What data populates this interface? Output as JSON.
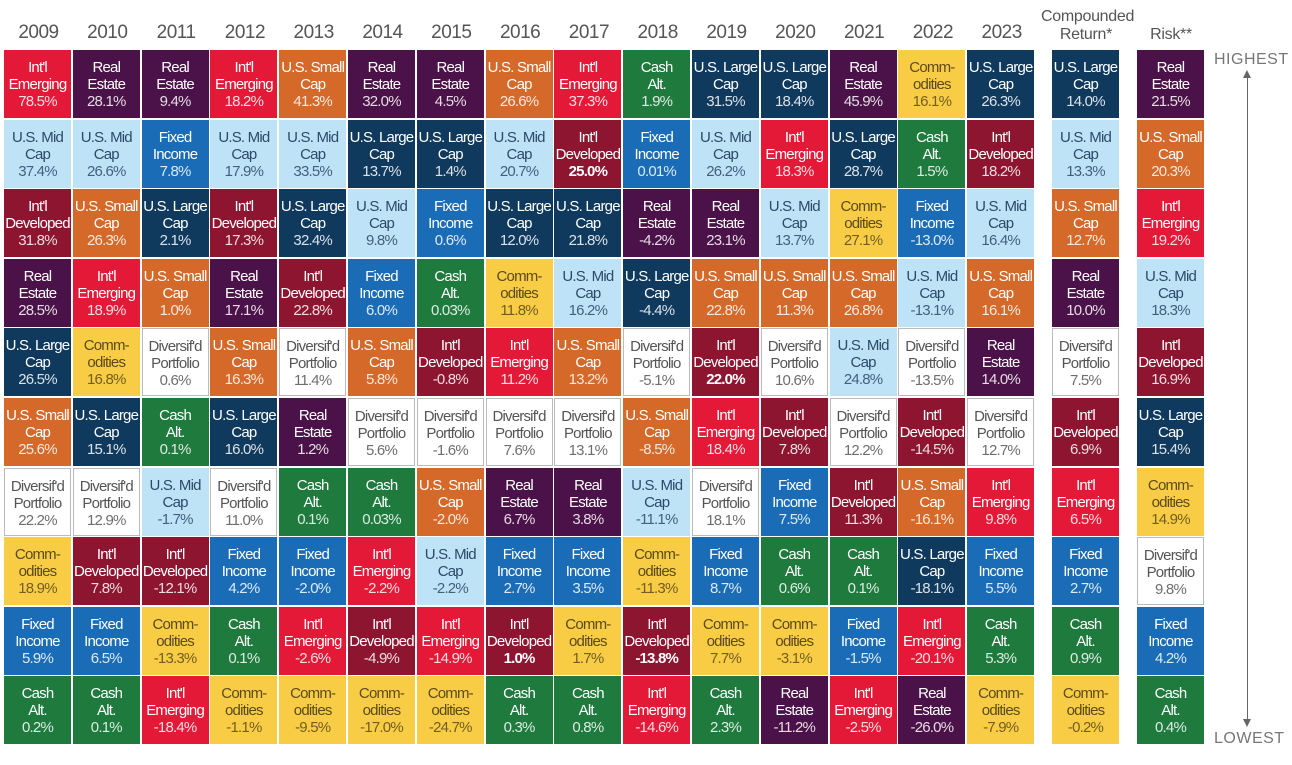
{
  "assets": {
    "em": {
      "line1": "Int'l",
      "line2": "Emerging",
      "color": "#e31937",
      "text": "#ffffff"
    },
    "re": {
      "line1": "Real",
      "line2": "Estate",
      "color": "#4a1248",
      "text": "#ffffff"
    },
    "mid": {
      "line1": "U.S. Mid",
      "line2": "Cap",
      "color": "#bfe3f6",
      "text": "#2a4a6a"
    },
    "fi": {
      "line1": "Fixed",
      "line2": "Income",
      "color": "#1b6cb7",
      "text": "#ffffff"
    },
    "dev": {
      "line1": "Int'l",
      "line2": "Developed",
      "color": "#8d1530",
      "text": "#ffffff"
    },
    "sm": {
      "line1": "U.S. Small",
      "line2": "Cap",
      "color": "#d4692a",
      "text": "#ffffff"
    },
    "lg": {
      "line1": "U.S. Large",
      "line2": "Cap",
      "color": "#0f3a5e",
      "text": "#ffffff"
    },
    "div": {
      "line1": "Diversif'd",
      "line2": "Portfolio",
      "color": "#ffffff",
      "text": "#555555"
    },
    "com": {
      "line1": "Comm-",
      "line2": "odities",
      "color": "#f8cd45",
      "text": "#5b4a1c"
    },
    "cash": {
      "line1": "Cash",
      "line2": "Alt.",
      "color": "#1f7a3d",
      "text": "#ffffff"
    }
  },
  "labels": {
    "highest": "HIGHEST",
    "lowest": "LOWEST"
  },
  "chart_data": {
    "type": "table",
    "columns": [
      {
        "header": "2009",
        "cells": [
          [
            "em",
            "78.5%"
          ],
          [
            "mid",
            "37.4%"
          ],
          [
            "dev",
            "31.8%"
          ],
          [
            "re",
            "28.5%"
          ],
          [
            "lg",
            "26.5%"
          ],
          [
            "sm",
            "25.6%"
          ],
          [
            "div",
            "22.2%"
          ],
          [
            "com",
            "18.9%"
          ],
          [
            "fi",
            "5.9%"
          ],
          [
            "cash",
            "0.2%"
          ]
        ]
      },
      {
        "header": "2010",
        "cells": [
          [
            "re",
            "28.1%"
          ],
          [
            "mid",
            "26.6%"
          ],
          [
            "sm",
            "26.3%"
          ],
          [
            "em",
            "18.9%"
          ],
          [
            "com",
            "16.8%"
          ],
          [
            "lg",
            "15.1%"
          ],
          [
            "div",
            "12.9%"
          ],
          [
            "dev",
            "7.8%"
          ],
          [
            "fi",
            "6.5%"
          ],
          [
            "cash",
            "0.1%"
          ]
        ]
      },
      {
        "header": "2011",
        "cells": [
          [
            "re",
            "9.4%"
          ],
          [
            "fi",
            "7.8%"
          ],
          [
            "lg",
            "2.1%"
          ],
          [
            "sm",
            "1.0%"
          ],
          [
            "div",
            "0.6%"
          ],
          [
            "cash",
            "0.1%"
          ],
          [
            "mid",
            "-1.7%"
          ],
          [
            "dev",
            "-12.1%"
          ],
          [
            "com",
            "-13.3%"
          ],
          [
            "em",
            "-18.4%"
          ]
        ]
      },
      {
        "header": "2012",
        "cells": [
          [
            "em",
            "18.2%"
          ],
          [
            "mid",
            "17.9%"
          ],
          [
            "dev",
            "17.3%"
          ],
          [
            "re",
            "17.1%"
          ],
          [
            "sm",
            "16.3%"
          ],
          [
            "lg",
            "16.0%"
          ],
          [
            "div",
            "11.0%"
          ],
          [
            "fi",
            "4.2%"
          ],
          [
            "cash",
            "0.1%"
          ],
          [
            "com",
            "-1.1%"
          ]
        ]
      },
      {
        "header": "2013",
        "cells": [
          [
            "sm",
            "41.3%"
          ],
          [
            "mid",
            "33.5%"
          ],
          [
            "lg",
            "32.4%"
          ],
          [
            "dev",
            "22.8%"
          ],
          [
            "div",
            "11.4%"
          ],
          [
            "re",
            "1.2%"
          ],
          [
            "cash",
            "0.1%"
          ],
          [
            "fi",
            "-2.0%"
          ],
          [
            "em",
            "-2.6%"
          ],
          [
            "com",
            "-9.5%"
          ]
        ]
      },
      {
        "header": "2014",
        "cells": [
          [
            "re",
            "32.0%"
          ],
          [
            "lg",
            "13.7%"
          ],
          [
            "mid",
            "9.8%"
          ],
          [
            "fi",
            "6.0%"
          ],
          [
            "sm",
            "5.8%"
          ],
          [
            "div",
            "5.6%"
          ],
          [
            "cash",
            "0.03%"
          ],
          [
            "em",
            "-2.2%"
          ],
          [
            "dev",
            "-4.9%"
          ],
          [
            "com",
            "-17.0%"
          ]
        ]
      },
      {
        "header": "2015",
        "cells": [
          [
            "re",
            "4.5%"
          ],
          [
            "lg",
            "1.4%"
          ],
          [
            "fi",
            "0.6%"
          ],
          [
            "cash",
            "0.03%"
          ],
          [
            "dev",
            "-0.8%"
          ],
          [
            "div",
            "-1.6%"
          ],
          [
            "sm",
            "-2.0%"
          ],
          [
            "mid",
            "-2.2%"
          ],
          [
            "em",
            "-14.9%"
          ],
          [
            "com",
            "-24.7%"
          ]
        ]
      },
      {
        "header": "2016",
        "cells": [
          [
            "sm",
            "26.6%"
          ],
          [
            "mid",
            "20.7%"
          ],
          [
            "lg",
            "12.0%"
          ],
          [
            "com",
            "11.8%"
          ],
          [
            "em",
            "11.2%"
          ],
          [
            "div",
            "7.6%"
          ],
          [
            "re",
            "6.7%"
          ],
          [
            "fi",
            "2.7%"
          ],
          [
            "dev",
            "1.0%"
          ],
          [
            "cash",
            "0.3%"
          ]
        ]
      },
      {
        "header": "2017",
        "cells": [
          [
            "em",
            "37.3%"
          ],
          [
            "dev",
            "25.0%"
          ],
          [
            "lg",
            "21.8%"
          ],
          [
            "mid",
            "16.2%"
          ],
          [
            "sm",
            "13.2%"
          ],
          [
            "div",
            "13.1%"
          ],
          [
            "re",
            "3.8%"
          ],
          [
            "fi",
            "3.5%"
          ],
          [
            "com",
            "1.7%"
          ],
          [
            "cash",
            "0.8%"
          ]
        ]
      },
      {
        "header": "2018",
        "cells": [
          [
            "cash",
            "1.9%"
          ],
          [
            "fi",
            "0.01%"
          ],
          [
            "re",
            "-4.2%"
          ],
          [
            "lg",
            "-4.4%"
          ],
          [
            "div",
            "-5.1%"
          ],
          [
            "sm",
            "-8.5%"
          ],
          [
            "mid",
            "-11.1%"
          ],
          [
            "com",
            "-11.3%"
          ],
          [
            "dev",
            "-13.8%"
          ],
          [
            "em",
            "-14.6%"
          ]
        ]
      },
      {
        "header": "2019",
        "cells": [
          [
            "lg",
            "31.5%"
          ],
          [
            "mid",
            "26.2%"
          ],
          [
            "re",
            "23.1%"
          ],
          [
            "sm",
            "22.8%"
          ],
          [
            "dev",
            "22.0%"
          ],
          [
            "em",
            "18.4%"
          ],
          [
            "div",
            "18.1%"
          ],
          [
            "fi",
            "8.7%"
          ],
          [
            "com",
            "7.7%"
          ],
          [
            "cash",
            "2.3%"
          ]
        ]
      },
      {
        "header": "2020",
        "cells": [
          [
            "lg",
            "18.4%"
          ],
          [
            "em",
            "18.3%"
          ],
          [
            "mid",
            "13.7%"
          ],
          [
            "sm",
            "11.3%"
          ],
          [
            "div",
            "10.6%"
          ],
          [
            "dev",
            "7.8%"
          ],
          [
            "fi",
            "7.5%"
          ],
          [
            "cash",
            "0.6%"
          ],
          [
            "com",
            "-3.1%"
          ],
          [
            "re",
            "-11.2%"
          ]
        ]
      },
      {
        "header": "2021",
        "cells": [
          [
            "re",
            "45.9%"
          ],
          [
            "lg",
            "28.7%"
          ],
          [
            "com",
            "27.1%"
          ],
          [
            "sm",
            "26.8%"
          ],
          [
            "mid",
            "24.8%"
          ],
          [
            "div",
            "12.2%"
          ],
          [
            "dev",
            "11.3%"
          ],
          [
            "cash",
            "0.1%"
          ],
          [
            "fi",
            "-1.5%"
          ],
          [
            "em",
            "-2.5%"
          ]
        ]
      },
      {
        "header": "2022",
        "cells": [
          [
            "com",
            "16.1%"
          ],
          [
            "cash",
            "1.5%"
          ],
          [
            "fi",
            "-13.0%"
          ],
          [
            "mid",
            "-13.1%"
          ],
          [
            "div",
            "-13.5%"
          ],
          [
            "dev",
            "-14.5%"
          ],
          [
            "sm",
            "-16.1%"
          ],
          [
            "lg",
            "-18.1%"
          ],
          [
            "em",
            "-20.1%"
          ],
          [
            "re",
            "-26.0%"
          ]
        ]
      },
      {
        "header": "2023",
        "cells": [
          [
            "lg",
            "26.3%"
          ],
          [
            "dev",
            "18.2%"
          ],
          [
            "mid",
            "16.4%"
          ],
          [
            "sm",
            "16.1%"
          ],
          [
            "re",
            "14.0%"
          ],
          [
            "div",
            "12.7%"
          ],
          [
            "em",
            "9.8%"
          ],
          [
            "fi",
            "5.5%"
          ],
          [
            "cash",
            "5.3%"
          ],
          [
            "com",
            "-7.9%"
          ]
        ]
      },
      {
        "header": "Compounded Return*",
        "cells": [
          [
            "lg",
            "14.0%"
          ],
          [
            "mid",
            "13.3%"
          ],
          [
            "sm",
            "12.7%"
          ],
          [
            "re",
            "10.0%"
          ],
          [
            "div",
            "7.5%"
          ],
          [
            "dev",
            "6.9%"
          ],
          [
            "em",
            "6.5%"
          ],
          [
            "fi",
            "2.7%"
          ],
          [
            "cash",
            "0.9%"
          ],
          [
            "com",
            "-0.2%"
          ]
        ]
      },
      {
        "header": "Risk**",
        "cells": [
          [
            "re",
            "21.5%"
          ],
          [
            "sm",
            "20.3%"
          ],
          [
            "em",
            "19.2%"
          ],
          [
            "mid",
            "18.3%"
          ],
          [
            "dev",
            "16.9%"
          ],
          [
            "lg",
            "15.4%"
          ],
          [
            "com",
            "14.9%"
          ],
          [
            "div",
            "9.8%"
          ],
          [
            "fi",
            "4.2%"
          ],
          [
            "cash",
            "0.4%"
          ]
        ]
      }
    ],
    "bold": [
      [
        7,
        8
      ],
      [
        8,
        1
      ],
      [
        9,
        8
      ],
      [
        10,
        4
      ]
    ]
  }
}
